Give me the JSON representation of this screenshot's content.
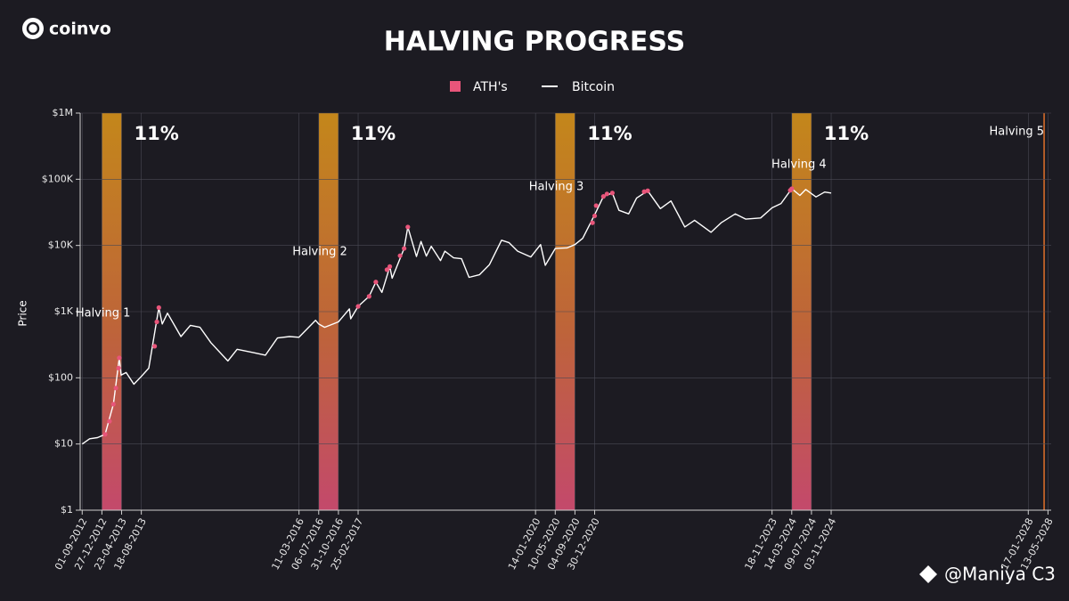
{
  "logo": "coinvo",
  "watermark": "@Maniya C3",
  "chart_data": {
    "type": "line",
    "title": "HALVING PROGRESS",
    "ylabel": "Price",
    "log_y": true,
    "grid": true,
    "ylim": [
      1,
      1000000
    ],
    "yticks": [
      {
        "value": 1,
        "label": "$1"
      },
      {
        "value": 10,
        "label": "$10"
      },
      {
        "value": 100,
        "label": "$100"
      },
      {
        "value": 1000,
        "label": "$1K"
      },
      {
        "value": 10000,
        "label": "$10K"
      },
      {
        "value": 100000,
        "label": "$100K"
      },
      {
        "value": 1000000,
        "label": "$1M"
      }
    ],
    "xlim": [
      "2012-08-20",
      "2028-06-01"
    ],
    "xticks": [
      {
        "value": "2012-09-01",
        "label": "01-09-2012"
      },
      {
        "value": "2012-12-27",
        "label": "27-12-2012"
      },
      {
        "value": "2013-04-23",
        "label": "23-04-2013"
      },
      {
        "value": "2013-08-18",
        "label": "18-08-2013"
      },
      {
        "value": "2016-03-11",
        "label": "11-03-2016"
      },
      {
        "value": "2016-07-06",
        "label": "06-07-2016"
      },
      {
        "value": "2016-10-31",
        "label": "31-10-2016"
      },
      {
        "value": "2017-02-25",
        "label": "25-02-2017"
      },
      {
        "value": "2020-01-14",
        "label": "14-01-2020"
      },
      {
        "value": "2020-05-10",
        "label": "10-05-2020"
      },
      {
        "value": "2020-09-04",
        "label": "04-09-2020"
      },
      {
        "value": "2020-12-30",
        "label": "30-12-2020"
      },
      {
        "value": "2023-11-18",
        "label": "18-11-2023"
      },
      {
        "value": "2024-03-14",
        "label": "14-03-2024"
      },
      {
        "value": "2024-07-09",
        "label": "09-07-2024"
      },
      {
        "value": "2024-11-03",
        "label": "03-11-2024"
      },
      {
        "value": "2028-01-17",
        "label": "17-01-2028"
      },
      {
        "value": "2028-05-13",
        "label": "13-05-2028"
      }
    ],
    "legend": "top",
    "halvings": [
      {
        "label": "Halving 1",
        "start": "2012-12-27",
        "end": "2013-04-23",
        "text": "11%"
      },
      {
        "label": "Halving 2",
        "start": "2016-07-06",
        "end": "2016-10-31",
        "text": "11%"
      },
      {
        "label": "Halving 3",
        "start": "2020-05-10",
        "end": "2020-09-04",
        "text": "11%"
      },
      {
        "label": "Halving 4",
        "start": "2024-03-14",
        "end": "2024-07-09",
        "text": "11%"
      },
      {
        "label": "Halving 5",
        "start": "2028-04-20",
        "end": "2028-04-20"
      }
    ],
    "series": [
      {
        "name": "ATH's",
        "color": "#e8557a",
        "x": [
          "2013-01-15",
          "2013-02-10",
          "2013-03-05",
          "2013-03-20",
          "2013-04-05",
          "2013-04-09",
          "2013-11-05",
          "2013-11-18",
          "2013-11-30",
          "2017-02-25",
          "2017-05-01",
          "2017-06-10",
          "2017-08-15",
          "2017-09-01",
          "2017-11-01",
          "2017-11-25",
          "2017-12-17",
          "2020-12-17",
          "2020-12-30",
          "2021-01-08",
          "2021-02-20",
          "2021-03-13",
          "2021-04-14",
          "2021-10-20",
          "2021-11-10",
          "2024-03-05",
          "2024-03-14"
        ],
        "values": [
          14,
          22,
          40,
          70,
          140,
          200,
          300,
          700,
          1150,
          1200,
          1700,
          2800,
          4300,
          4800,
          7000,
          9000,
          19000,
          22000,
          28000,
          40000,
          55000,
          60000,
          62000,
          65000,
          67000,
          68000,
          72000
        ]
      },
      {
        "name": "Bitcoin",
        "color": "#ffffff",
        "x": [
          "2012-09-01",
          "2012-10-15",
          "2012-12-01",
          "2013-01-15",
          "2013-03-05",
          "2013-04-09",
          "2013-04-20",
          "2013-05-20",
          "2013-07-05",
          "2013-08-18",
          "2013-10-01",
          "2013-11-30",
          "2013-12-20",
          "2014-01-20",
          "2014-04-10",
          "2014-06-05",
          "2014-08-01",
          "2014-10-05",
          "2015-01-14",
          "2015-03-10",
          "2015-06-15",
          "2015-08-25",
          "2015-11-04",
          "2016-01-15",
          "2016-03-11",
          "2016-06-17",
          "2016-07-06",
          "2016-08-10",
          "2016-10-31",
          "2017-01-04",
          "2017-01-12",
          "2017-02-25",
          "2017-05-01",
          "2017-06-10",
          "2017-07-16",
          "2017-09-01",
          "2017-09-15",
          "2017-11-25",
          "2017-12-17",
          "2018-02-06",
          "2018-03-05",
          "2018-04-06",
          "2018-05-05",
          "2018-06-29",
          "2018-07-25",
          "2018-09-15",
          "2018-11-01",
          "2018-12-15",
          "2019-02-15",
          "2019-04-15",
          "2019-06-26",
          "2019-08-10",
          "2019-09-30",
          "2019-12-17",
          "2020-02-13",
          "2020-03-12",
          "2020-05-10",
          "2020-07-20",
          "2020-09-04",
          "2020-10-20",
          "2020-12-30",
          "2021-02-20",
          "2021-04-14",
          "2021-05-23",
          "2021-07-20",
          "2021-09-05",
          "2021-11-10",
          "2022-01-24",
          "2022-03-28",
          "2022-06-18",
          "2022-08-15",
          "2022-11-21",
          "2023-01-20",
          "2023-04-14",
          "2023-06-15",
          "2023-09-11",
          "2023-11-18",
          "2024-01-10",
          "2024-03-14",
          "2024-05-01",
          "2024-06-05",
          "2024-08-05",
          "2024-09-25",
          "2024-11-03"
        ],
        "values": [
          10,
          12,
          12.5,
          14,
          40,
          200,
          110,
          120,
          80,
          105,
          140,
          1150,
          650,
          950,
          420,
          620,
          580,
          340,
          180,
          270,
          240,
          220,
          400,
          420,
          410,
          740,
          650,
          580,
          700,
          1100,
          780,
          1200,
          1700,
          2800,
          1950,
          4800,
          3200,
          9000,
          19000,
          6800,
          11500,
          6900,
          9700,
          5900,
          8200,
          6500,
          6300,
          3300,
          3600,
          5100,
          12000,
          11000,
          8200,
          6700,
          10300,
          5000,
          9000,
          9200,
          10300,
          12800,
          29000,
          55000,
          62000,
          34000,
          30000,
          52000,
          67000,
          36000,
          47000,
          19000,
          24000,
          15800,
          22000,
          30000,
          25000,
          26000,
          37000,
          43000,
          72000,
          57000,
          70000,
          54000,
          64000,
          62000
        ]
      }
    ]
  }
}
